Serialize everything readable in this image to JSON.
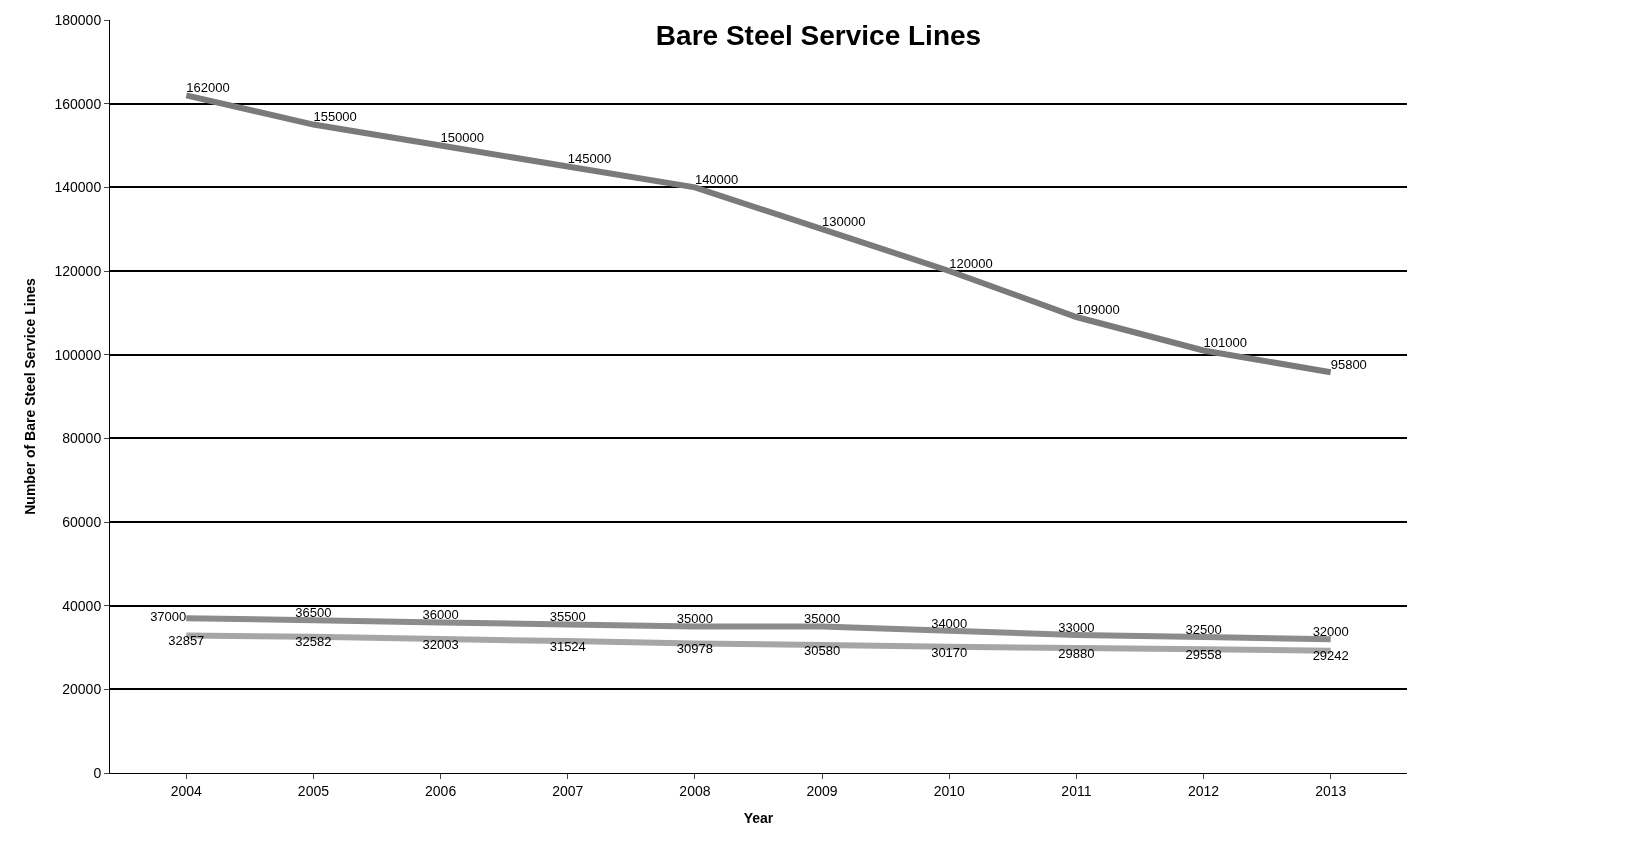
{
  "chart_data": {
    "type": "line",
    "title": "Bare Steel Service Lines",
    "xlabel": "Year",
    "ylabel": "Number of Bare Steel Service Lines",
    "categories": [
      "2004",
      "2005",
      "2006",
      "2007",
      "2008",
      "2009",
      "2010",
      "2011",
      "2012",
      "2013"
    ],
    "series": [
      {
        "color": "#7a7a7a",
        "values": [
          162000,
          155000,
          150000,
          145000,
          140000,
          130000,
          120000,
          109000,
          101000,
          95800
        ]
      },
      {
        "color": "#8c8c8c",
        "values": [
          37000,
          36500,
          36000,
          35500,
          35000,
          35000,
          34000,
          33000,
          32500,
          32000
        ]
      },
      {
        "color": "#a6a6a6",
        "values": [
          32857,
          32582,
          32003,
          31524,
          30978,
          30580,
          30170,
          29880,
          29558,
          29242
        ]
      }
    ],
    "ylim": [
      0,
      180000
    ],
    "yticks": [
      0,
      20000,
      40000,
      60000,
      80000,
      100000,
      120000,
      140000,
      160000,
      180000
    ],
    "grid": "y",
    "data_labels": true,
    "marker": "none",
    "line_style": "solid"
  }
}
